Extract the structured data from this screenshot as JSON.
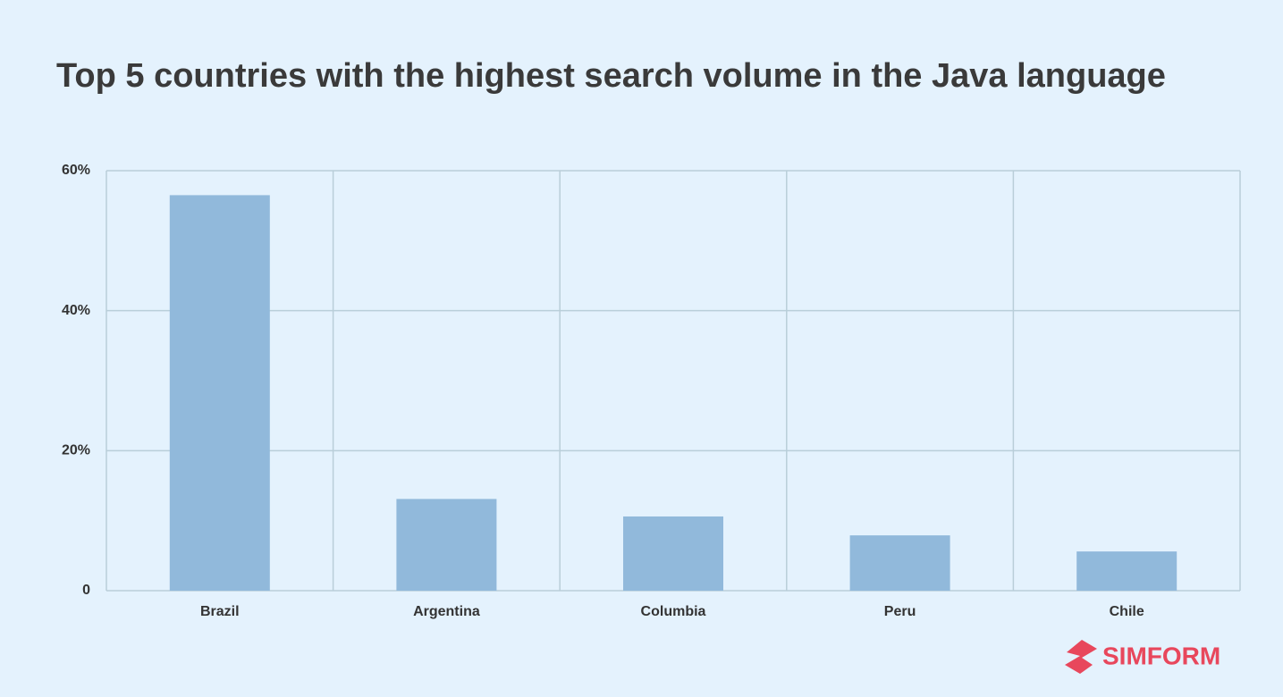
{
  "chart_data": {
    "type": "bar",
    "title": "Top 5 countries with the highest search volume in the Java language",
    "categories": [
      "Brazil",
      "Argentina",
      "Columbia",
      "Peru",
      "Chile"
    ],
    "values": [
      56.5,
      13.1,
      10.6,
      7.9,
      5.6
    ],
    "color": "#91b9db",
    "ylim": [
      0,
      60
    ],
    "yticks": [
      0,
      {
        "value": 20,
        "label": "20%"
      },
      {
        "value": 40,
        "label": "40%"
      },
      {
        "value": 60,
        "label": "60%"
      }
    ],
    "grid": true
  },
  "logo_text": "SIMFORM"
}
